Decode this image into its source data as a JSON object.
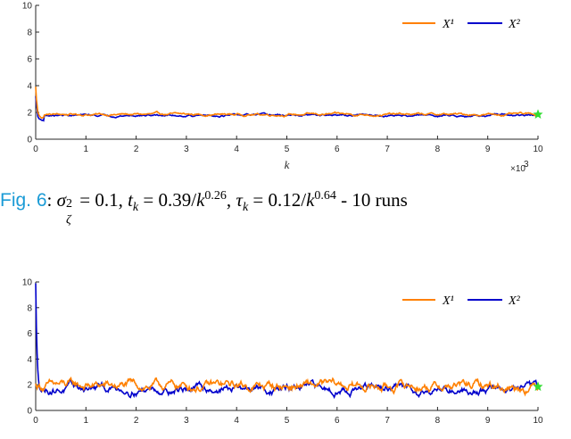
{
  "caption": {
    "fig_label": "Fig. 6",
    "text_a": ": ",
    "math": "σ",
    "sub": "ζ",
    "sup": "2",
    "rest": " = 0.1, ",
    "t_part": "t",
    "t_sub": "k",
    "t_eq": " = 0.39/",
    "t_k": "k",
    "t_exp": "0.26",
    "tau_sep": ", ",
    "tau": "τ",
    "tau_sub": "k",
    "tau_eq": " = 0.12/",
    "tau_k": "k",
    "tau_exp": "0.64",
    "runs": " - 10 runs"
  },
  "colors": {
    "x1": "#ff8000",
    "x2": "#0000cc",
    "star": "#33dd33",
    "axis": "#262626"
  },
  "chart_data": [
    {
      "type": "line",
      "xlabel": "k",
      "x_exponent_label": "×10",
      "x_exponent_sup": "3",
      "xlim": [
        0,
        10
      ],
      "ylim": [
        0,
        10
      ],
      "xticks": [
        "0",
        "1",
        "2",
        "3",
        "4",
        "5",
        "6",
        "7",
        "8",
        "9",
        "10"
      ],
      "yticks": [
        "0",
        "2",
        "4",
        "6",
        "8",
        "10"
      ],
      "legend": {
        "placement": "top-right",
        "entries": [
          "X¹",
          "X²"
        ]
      },
      "series": [
        {
          "name": "X¹",
          "start_value": 3.9,
          "steady_value": 1.85,
          "noise": 0.06
        },
        {
          "name": "X²",
          "start_value": 3.2,
          "steady_value": 1.78,
          "noise": 0.05
        }
      ],
      "end_marker": {
        "x": 10,
        "y": 1.85
      }
    },
    {
      "type": "line",
      "xlabel": "",
      "xlim": [
        0,
        10
      ],
      "ylim": [
        0,
        10
      ],
      "xticks": [
        "0",
        "1",
        "2",
        "3",
        "4",
        "5",
        "6",
        "7",
        "8",
        "9",
        "10"
      ],
      "yticks": [
        "0",
        "2",
        "4",
        "6",
        "8",
        "10"
      ],
      "legend": {
        "placement": "top-right",
        "entries": [
          "X¹",
          "X²"
        ]
      },
      "series": [
        {
          "name": "X¹",
          "start_value": 2.0,
          "steady_value": 1.9,
          "noise": 0.25
        },
        {
          "name": "X²",
          "start_value": 9.8,
          "steady_value": 1.7,
          "noise": 0.22
        }
      ],
      "end_marker": {
        "x": 10,
        "y": 1.85
      }
    }
  ]
}
